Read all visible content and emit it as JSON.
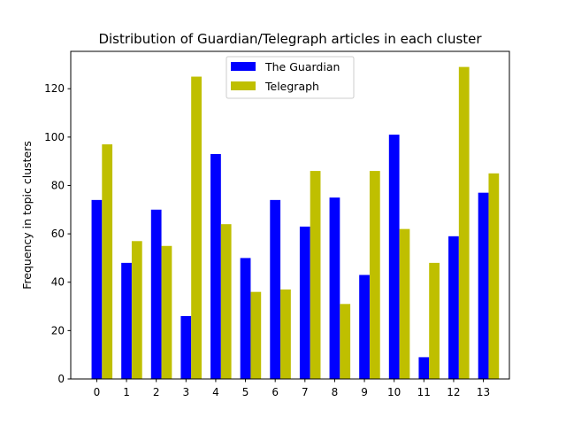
{
  "chart_data": {
    "type": "bar",
    "title": "Distribution of Guardian/Telegraph articles in each cluster",
    "xlabel": "",
    "ylabel": "Frequency in topic clusters",
    "categories": [
      "0",
      "1",
      "2",
      "3",
      "4",
      "5",
      "6",
      "7",
      "8",
      "9",
      "10",
      "11",
      "12",
      "13"
    ],
    "series": [
      {
        "name": "The Guardian",
        "color": "#0000ff",
        "values": [
          74,
          48,
          70,
          26,
          93,
          50,
          74,
          63,
          75,
          43,
          101,
          9,
          59,
          77
        ]
      },
      {
        "name": "Telegraph",
        "color": "#bfbf00",
        "values": [
          97,
          57,
          55,
          125,
          64,
          36,
          37,
          86,
          31,
          86,
          62,
          48,
          129,
          85
        ]
      }
    ],
    "ylim": [
      0,
      135.45
    ],
    "yticks": [
      0,
      20,
      40,
      60,
      80,
      100,
      120
    ],
    "legend_position": "upper center",
    "grid": false
  }
}
